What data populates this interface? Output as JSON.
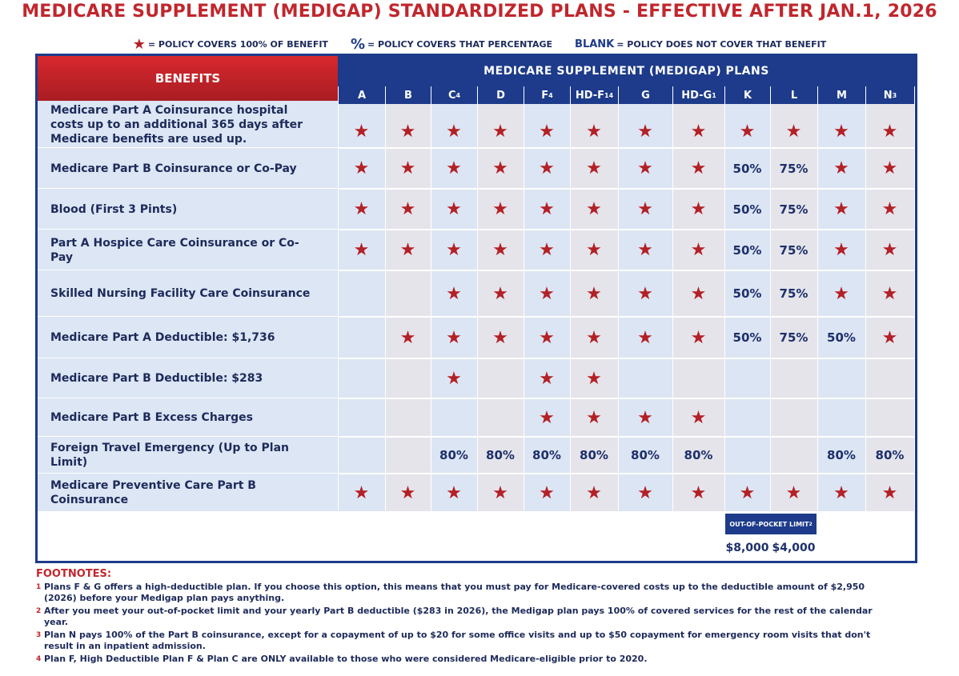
{
  "header": {
    "title": "MEDICARE SUPPLEMENT (MEDIGAP) STANDARDIZED PLANS - EFFECTIVE AFTER JAN.1, 2026",
    "legend": [
      {
        "symbol": "★",
        "text": "= POLICY COVERS 100% OF BENEFIT"
      },
      {
        "symbol": "%",
        "text": "= POLICY COVERS THAT PERCENTAGE"
      },
      {
        "symbol": "BLANK",
        "text": "= POLICY DOES NOT COVER THAT BENEFIT"
      }
    ]
  },
  "table": {
    "benefits_header": "BENEFITS",
    "plans_header": "MEDICARE SUPPLEMENT  (MEDIGAP) PLANS",
    "columns": [
      {
        "label": "A"
      },
      {
        "label": "B"
      },
      {
        "label": "C",
        "sup": "4"
      },
      {
        "label": "D"
      },
      {
        "label": "F",
        "sup": "4"
      },
      {
        "label": "HD-F",
        "sup": "14"
      },
      {
        "label": "G"
      },
      {
        "label": "HD-G",
        "sup": "1"
      },
      {
        "label": "K"
      },
      {
        "label": "L"
      },
      {
        "label": "M"
      },
      {
        "label": "N",
        "sup": "3"
      }
    ],
    "rows": [
      {
        "benefit": "Medicare Part A Coinsurance hospital costs up to an additional 365 days after Medicare benefits are used up.",
        "cells": [
          "★",
          "★",
          "★",
          "★",
          "★",
          "★",
          "★",
          "★",
          "★",
          "★",
          "★",
          "★"
        ]
      },
      {
        "benefit": "Medicare Part B Coinsurance or Co-Pay",
        "cells": [
          "★",
          "★",
          "★",
          "★",
          "★",
          "★",
          "★",
          "★",
          "50%",
          "75%",
          "★",
          "★"
        ]
      },
      {
        "benefit": "Blood (First 3 Pints)",
        "cells": [
          "★",
          "★",
          "★",
          "★",
          "★",
          "★",
          "★",
          "★",
          "50%",
          "75%",
          "★",
          "★"
        ]
      },
      {
        "benefit": "Part A Hospice Care Coinsurance or Co-Pay",
        "cells": [
          "★",
          "★",
          "★",
          "★",
          "★",
          "★",
          "★",
          "★",
          "50%",
          "75%",
          "★",
          "★"
        ]
      },
      {
        "benefit": "Skilled Nursing Facility Care Coinsurance",
        "cells": [
          null,
          null,
          "★",
          "★",
          "★",
          "★",
          "★",
          "★",
          "50%",
          "75%",
          "★",
          "★"
        ]
      },
      {
        "benefit": "Medicare Part A Deductible: $1,736",
        "cells": [
          null,
          "★",
          "★",
          "★",
          "★",
          "★",
          "★",
          "★",
          "50%",
          "75%",
          "50%",
          "★"
        ]
      },
      {
        "benefit": "Medicare Part B Deductible: $283",
        "cells": [
          null,
          null,
          "★",
          null,
          "★",
          "★",
          null,
          null,
          null,
          null,
          null,
          null
        ]
      },
      {
        "benefit": "Medicare Part B Excess Charges",
        "cells": [
          null,
          null,
          null,
          null,
          "★",
          "★",
          "★",
          "★",
          null,
          null,
          null,
          null
        ]
      },
      {
        "benefit": "Foreign Travel Emergency (Up to Plan Limit)",
        "cells": [
          null,
          null,
          "80%",
          "80%",
          "80%",
          "80%",
          "80%",
          "80%",
          null,
          null,
          "80%",
          "80%"
        ]
      },
      {
        "benefit": "Medicare Preventive Care Part B Coinsurance",
        "cells": [
          "★",
          "★",
          "★",
          "★",
          "★",
          "★",
          "★",
          "★",
          "★",
          "★",
          "★",
          "★"
        ]
      }
    ],
    "out_of_pocket": {
      "label": "OUT-OF-POCKET LIMIT",
      "sup": "2",
      "values": [
        "$8,000",
        "$4,000"
      ]
    }
  },
  "footnotes": {
    "title": "FOOTNOTES:",
    "items": [
      {
        "number": "1",
        "text": "Plans F & G offers a high-deductible plan. If you choose this option, this means that you must pay for Medicare-covered costs up to the deductible amount of $2,950 (2026) before your Medigap plan pays anything."
      },
      {
        "number": "2",
        "text": "After you meet your out-of-pocket limit and your yearly Part B deductible ($283 in 2026), the Medigap plan pays 100% of covered services for the rest of the calendar year."
      },
      {
        "number": "3",
        "text": "Plan N pays 100% of the Part B coinsurance, except for a copayment of up to $20 for some office visits and up to $50 copayment for emergency room visits that don't result in an inpatient admission."
      },
      {
        "number": "4",
        "text": "Plan F, High Deductible Plan F & Plan C are ONLY available to those who were considered Medicare-eligible prior to 2020."
      }
    ]
  }
}
